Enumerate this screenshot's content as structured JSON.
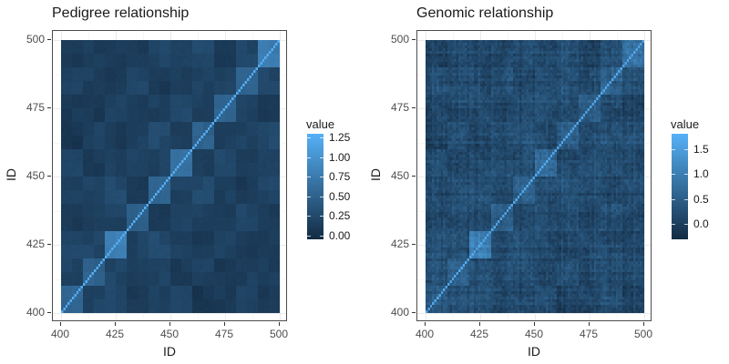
{
  "theme": {
    "background": "#ffffff",
    "panel_border": "#4d4d4d",
    "grid_major": "#ebebeb",
    "grid_minor": "#f6f6f6",
    "text_color": "#1a1a1a",
    "axis_text_color": "#4d4d4d"
  },
  "chart_data": [
    {
      "type": "heatmap",
      "title": "Pedigree relationship",
      "xlabel": "ID",
      "ylabel": "ID",
      "x_range": [
        400,
        500
      ],
      "y_range": [
        400,
        500
      ],
      "x_ticks": [
        400,
        425,
        450,
        475,
        500
      ],
      "y_ticks": [
        400,
        425,
        450,
        475,
        500
      ],
      "n": 100,
      "block_size": 10,
      "diag_value": 1.25,
      "block_values": [
        [
          0.55,
          0.2,
          0.25,
          0.1,
          0.15,
          0.22,
          0.05,
          0.12,
          0.18,
          0.08
        ],
        [
          0.2,
          0.5,
          0.22,
          0.15,
          0.2,
          0.1,
          0.18,
          0.08,
          0.15,
          0.12
        ],
        [
          0.25,
          0.22,
          0.8,
          0.18,
          0.25,
          0.15,
          0.1,
          0.2,
          0.12,
          0.15
        ],
        [
          0.1,
          0.15,
          0.18,
          0.5,
          0.12,
          0.2,
          0.15,
          0.1,
          0.22,
          0.1
        ],
        [
          0.15,
          0.2,
          0.25,
          0.12,
          0.55,
          0.18,
          0.25,
          0.15,
          0.1,
          0.2
        ],
        [
          0.22,
          0.1,
          0.15,
          0.2,
          0.18,
          0.65,
          0.12,
          0.22,
          0.15,
          0.18
        ],
        [
          0.05,
          0.18,
          0.1,
          0.15,
          0.25,
          0.12,
          0.5,
          0.15,
          0.2,
          0.25
        ],
        [
          0.12,
          0.08,
          0.2,
          0.1,
          0.15,
          0.22,
          0.15,
          0.55,
          0.18,
          0.12
        ],
        [
          0.18,
          0.15,
          0.12,
          0.22,
          0.1,
          0.15,
          0.2,
          0.18,
          0.5,
          0.22
        ],
        [
          0.08,
          0.12,
          0.15,
          0.1,
          0.2,
          0.18,
          0.25,
          0.12,
          0.22,
          0.75
        ]
      ],
      "noise": {
        "seed": 11,
        "cell_amp": 0.015,
        "indiv_amp": 0.0,
        "subblock_size": 5,
        "subblock_amp": 0.05
      },
      "scale": {
        "low": "#132B43",
        "high": "#56B1F7",
        "domain": [
          -0.05,
          1.3
        ],
        "legend_title": "value",
        "legend_ticks": [
          0.0,
          0.25,
          0.5,
          0.75,
          1.0,
          1.25
        ],
        "legend_labels": [
          "0.00",
          "0.25",
          "0.50",
          "0.75",
          "1.00",
          "1.25"
        ]
      }
    },
    {
      "type": "heatmap",
      "title": "Genomic relationship",
      "xlabel": "ID",
      "ylabel": "ID",
      "x_range": [
        400,
        500
      ],
      "y_range": [
        400,
        500
      ],
      "x_ticks": [
        400,
        425,
        450,
        475,
        500
      ],
      "y_ticks": [
        400,
        425,
        450,
        475,
        500
      ],
      "n": 100,
      "block_size": 10,
      "diag_value": 1.6,
      "block_values": [
        [
          0.5,
          0.22,
          0.28,
          0.12,
          0.18,
          0.24,
          0.08,
          0.15,
          0.2,
          0.1
        ],
        [
          0.22,
          0.48,
          0.25,
          0.18,
          0.22,
          0.12,
          0.2,
          0.1,
          0.18,
          0.15
        ],
        [
          0.28,
          0.25,
          1.0,
          0.2,
          0.28,
          0.18,
          0.12,
          0.22,
          0.15,
          0.18
        ],
        [
          0.12,
          0.18,
          0.2,
          0.48,
          0.15,
          0.22,
          0.18,
          0.12,
          0.25,
          0.12
        ],
        [
          0.18,
          0.22,
          0.28,
          0.15,
          0.52,
          0.2,
          0.28,
          0.18,
          0.12,
          0.22
        ],
        [
          0.24,
          0.12,
          0.18,
          0.22,
          0.2,
          0.62,
          0.15,
          0.25,
          0.18,
          0.2
        ],
        [
          0.08,
          0.2,
          0.12,
          0.18,
          0.28,
          0.15,
          0.48,
          0.18,
          0.22,
          0.28
        ],
        [
          0.15,
          0.1,
          0.22,
          0.12,
          0.18,
          0.25,
          0.18,
          0.52,
          0.2,
          0.15
        ],
        [
          0.2,
          0.18,
          0.15,
          0.25,
          0.12,
          0.18,
          0.22,
          0.2,
          0.48,
          0.25
        ],
        [
          0.1,
          0.15,
          0.18,
          0.12,
          0.22,
          0.2,
          0.28,
          0.15,
          0.25,
          0.85
        ]
      ],
      "noise": {
        "seed": 29,
        "cell_amp": 0.15,
        "indiv_amp": 0.1,
        "subblock_size": 5,
        "subblock_amp": 0.08
      },
      "scale": {
        "low": "#132B43",
        "high": "#56B1F7",
        "domain": [
          -0.3,
          1.8
        ],
        "legend_title": "value",
        "legend_ticks": [
          0.0,
          0.5,
          1.0,
          1.5
        ],
        "legend_labels": [
          "0.0",
          "0.5",
          "1.0",
          "1.5"
        ]
      }
    }
  ]
}
